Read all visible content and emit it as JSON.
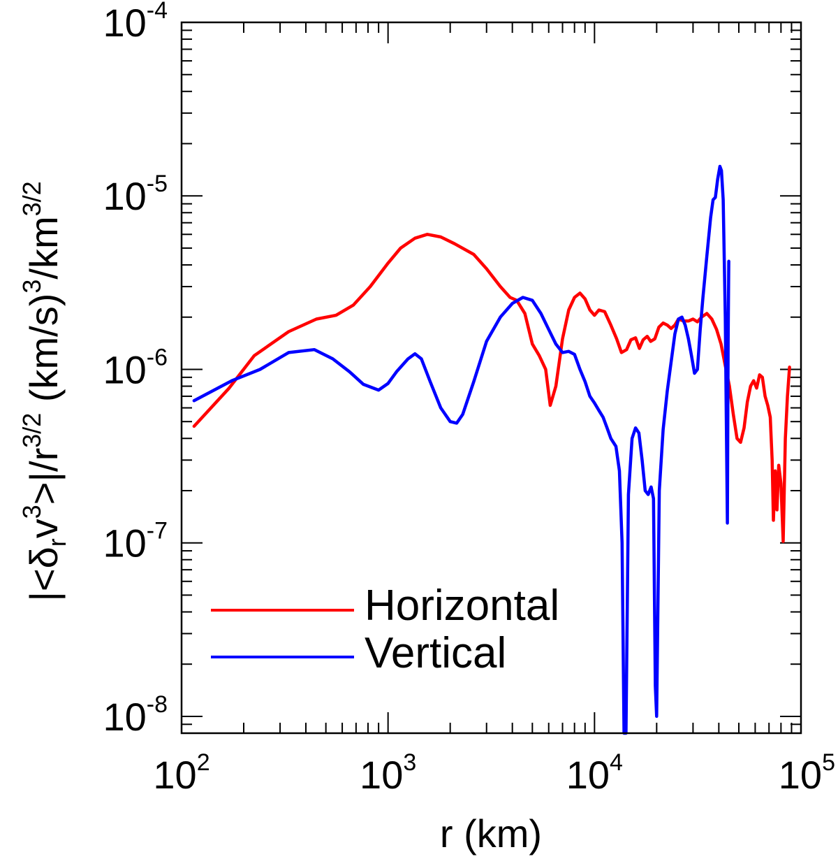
{
  "chart_data": {
    "type": "line",
    "title": "",
    "xscale": "log",
    "yscale": "log",
    "xlim": [
      100,
      100000
    ],
    "ylim": [
      8e-09,
      0.0001
    ],
    "xlabel": "r (km)",
    "ylabel": "|<δ_r v^3>|/r^{3/2} (km/s)^3/km^{3/2}",
    "ylabel_parts": {
      "p1": "|<δ",
      "sub_r": "r",
      "p2": "v",
      "sup_3a": "3",
      "p3": ">|/r",
      "sup_32a": "3/2",
      "p4": " (km/s)",
      "sup_3b": "3",
      "p5": "/km",
      "sup_32b": "3/2"
    },
    "x_ticks": [
      {
        "base": "10",
        "exp": "2",
        "value": 100
      },
      {
        "base": "10",
        "exp": "3",
        "value": 1000
      },
      {
        "base": "10",
        "exp": "4",
        "value": 10000
      },
      {
        "base": "10",
        "exp": "5",
        "value": 100000
      }
    ],
    "y_ticks": [
      {
        "base": "10",
        "exp": "-8",
        "value": 1e-08
      },
      {
        "base": "10",
        "exp": "-7",
        "value": 1e-07
      },
      {
        "base": "10",
        "exp": "-6",
        "value": 1e-06
      },
      {
        "base": "10",
        "exp": "-5",
        "value": 1e-05
      },
      {
        "base": "10",
        "exp": "-4",
        "value": 0.0001
      }
    ],
    "legend_position": "lower-left",
    "series": [
      {
        "name": "Horizontal",
        "color": "#ff0000",
        "points": [
          [
            115,
            4.7e-07
          ],
          [
            170,
            7.8e-07
          ],
          [
            225,
            1.2e-06
          ],
          [
            330,
            1.65e-06
          ],
          [
            450,
            1.95e-06
          ],
          [
            560,
            2.05e-06
          ],
          [
            680,
            2.35e-06
          ],
          [
            820,
            3e-06
          ],
          [
            1000,
            4.1e-06
          ],
          [
            1150,
            5e-06
          ],
          [
            1350,
            5.7e-06
          ],
          [
            1550,
            6e-06
          ],
          [
            1800,
            5.8e-06
          ],
          [
            2100,
            5.3e-06
          ],
          [
            2600,
            4.6e-06
          ],
          [
            3000,
            3.8e-06
          ],
          [
            3500,
            3e-06
          ],
          [
            3900,
            2.6e-06
          ],
          [
            4200,
            2.5e-06
          ],
          [
            4600,
            2.1e-06
          ],
          [
            5000,
            1.4e-06
          ],
          [
            5400,
            1.2e-06
          ],
          [
            5800,
            1e-06
          ],
          [
            6100,
            6.2e-07
          ],
          [
            6500,
            8e-07
          ],
          [
            7000,
            1.5e-06
          ],
          [
            7500,
            2.2e-06
          ],
          [
            8000,
            2.6e-06
          ],
          [
            8500,
            2.75e-06
          ],
          [
            9000,
            2.55e-06
          ],
          [
            9500,
            2.2e-06
          ],
          [
            10000,
            2.05e-06
          ],
          [
            10500,
            2.2e-06
          ],
          [
            11200,
            2.15e-06
          ],
          [
            12000,
            1.8e-06
          ],
          [
            12800,
            1.5e-06
          ],
          [
            13500,
            1.25e-06
          ],
          [
            14300,
            1.3e-06
          ],
          [
            15000,
            1.48e-06
          ],
          [
            15800,
            1.52e-06
          ],
          [
            16500,
            1.32e-06
          ],
          [
            17200,
            1.48e-06
          ],
          [
            18000,
            1.55e-06
          ],
          [
            18700,
            1.45e-06
          ],
          [
            19600,
            1.5e-06
          ],
          [
            20500,
            1.75e-06
          ],
          [
            21500,
            1.85e-06
          ],
          [
            22500,
            1.8e-06
          ],
          [
            23500,
            1.72e-06
          ],
          [
            24500,
            1.8e-06
          ],
          [
            25500,
            1.95e-06
          ],
          [
            27000,
            1.9e-06
          ],
          [
            28500,
            1.9e-06
          ],
          [
            30000,
            1.95e-06
          ],
          [
            31500,
            1.88e-06
          ],
          [
            33000,
            2e-06
          ],
          [
            35000,
            2.1e-06
          ],
          [
            37000,
            1.95e-06
          ],
          [
            39000,
            1.7e-06
          ],
          [
            41000,
            1.4e-06
          ],
          [
            43000,
            1.05e-06
          ],
          [
            45000,
            8e-07
          ],
          [
            47000,
            5.5e-07
          ],
          [
            49000,
            4e-07
          ],
          [
            51000,
            3.8e-07
          ],
          [
            53000,
            4.6e-07
          ],
          [
            55000,
            6.5e-07
          ],
          [
            57000,
            8e-07
          ],
          [
            59000,
            8.6e-07
          ],
          [
            61000,
            7.8e-07
          ],
          [
            63000,
            9.3e-07
          ],
          [
            65000,
            9e-07
          ],
          [
            67000,
            7e-07
          ],
          [
            69000,
            6.2e-07
          ],
          [
            71000,
            5.3e-07
          ],
          [
            72500,
            3e-07
          ],
          [
            73500,
            1.35e-07
          ],
          [
            75000,
            2.6e-07
          ],
          [
            76500,
            1.55e-07
          ],
          [
            78000,
            2.8e-07
          ],
          [
            80000,
            2.2e-07
          ],
          [
            82000,
            1.02e-07
          ],
          [
            84000,
            4e-07
          ],
          [
            86000,
            7e-07
          ],
          [
            88000,
            1.03e-06
          ]
        ]
      },
      {
        "name": "Vertical",
        "color": "#0000ff",
        "points": [
          [
            115,
            6.6e-07
          ],
          [
            175,
            8.6e-07
          ],
          [
            240,
            1e-06
          ],
          [
            330,
            1.25e-06
          ],
          [
            440,
            1.3e-06
          ],
          [
            540,
            1.15e-06
          ],
          [
            650,
            9.7e-07
          ],
          [
            760,
            8.2e-07
          ],
          [
            900,
            7.6e-07
          ],
          [
            1000,
            8.3e-07
          ],
          [
            1100,
            9.7e-07
          ],
          [
            1250,
            1.15e-06
          ],
          [
            1350,
            1.23e-06
          ],
          [
            1450,
            1.15e-06
          ],
          [
            1600,
            8.5e-07
          ],
          [
            1800,
            6e-07
          ],
          [
            2000,
            5e-07
          ],
          [
            2150,
            4.9e-07
          ],
          [
            2300,
            5.5e-07
          ],
          [
            2600,
            8.5e-07
          ],
          [
            3000,
            1.45e-06
          ],
          [
            3500,
            2e-06
          ],
          [
            4000,
            2.4e-06
          ],
          [
            4500,
            2.6e-06
          ],
          [
            5000,
            2.5e-06
          ],
          [
            5500,
            2.1e-06
          ],
          [
            6000,
            1.7e-06
          ],
          [
            6500,
            1.4e-06
          ],
          [
            7000,
            1.25e-06
          ],
          [
            7500,
            1.27e-06
          ],
          [
            8000,
            1.22e-06
          ],
          [
            8500,
            1e-06
          ],
          [
            9000,
            8.5e-07
          ],
          [
            9500,
            7e-07
          ],
          [
            10000,
            6.4e-07
          ],
          [
            10500,
            5.8e-07
          ],
          [
            11000,
            5.3e-07
          ],
          [
            11500,
            4.6e-07
          ],
          [
            12000,
            4e-07
          ],
          [
            12700,
            3.6e-07
          ],
          [
            13200,
            2.6e-07
          ],
          [
            13600,
            1e-07
          ],
          [
            13900,
            8e-09
          ],
          [
            14200,
            8e-09
          ],
          [
            14600,
            1.9e-07
          ],
          [
            15200,
            4e-07
          ],
          [
            15800,
            4.6e-07
          ],
          [
            16400,
            4.3e-07
          ],
          [
            17000,
            3e-07
          ],
          [
            17600,
            2e-07
          ],
          [
            18200,
            1.9e-07
          ],
          [
            18800,
            2.1e-07
          ],
          [
            19300,
            1.8e-07
          ],
          [
            19700,
            1.5e-08
          ],
          [
            20000,
            1e-08
          ],
          [
            20600,
            2e-07
          ],
          [
            21500,
            4.5e-07
          ],
          [
            22500,
            7.5e-07
          ],
          [
            23500,
            1.1e-06
          ],
          [
            24500,
            1.6e-06
          ],
          [
            25500,
            1.95e-06
          ],
          [
            26500,
            2e-06
          ],
          [
            27500,
            1.8e-06
          ],
          [
            28500,
            1.5e-06
          ],
          [
            29500,
            1.2e-06
          ],
          [
            30500,
            9.5e-07
          ],
          [
            31500,
            1e-06
          ],
          [
            32500,
            1.7e-06
          ],
          [
            33500,
            2.6e-06
          ],
          [
            35000,
            4.5e-06
          ],
          [
            36500,
            7.5e-06
          ],
          [
            37500,
            9.5e-06
          ],
          [
            38500,
            9.8e-06
          ],
          [
            39500,
            1.25e-05
          ],
          [
            40500,
            1.48e-05
          ],
          [
            41200,
            1.4e-05
          ],
          [
            42000,
            9.5e-06
          ],
          [
            43000,
            2e-06
          ],
          [
            43500,
            5e-07
          ],
          [
            44000,
            1.3e-07
          ],
          [
            44400,
            1.5e-06
          ],
          [
            44700,
            4.2e-06
          ]
        ]
      }
    ]
  }
}
